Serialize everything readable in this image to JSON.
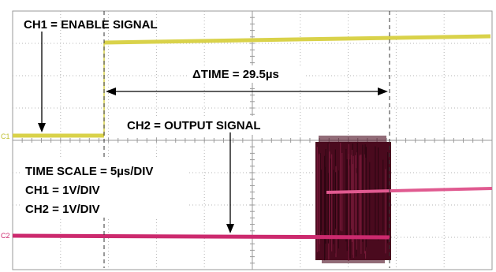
{
  "chart_data": {
    "type": "line",
    "title": "",
    "xlabel": "",
    "ylabel": "",
    "grid": true,
    "annotations": {
      "ch1_label": "CH1 = ENABLE SIGNAL",
      "ch2_label": "CH2 = OUTPUT SIGNAL",
      "delta_time_label": "ΔTIME = 29.5µs",
      "time_scale_label": "TIME SCALE = 5µs/DIV",
      "ch1_scale_label": "CH1 = 1V/DIV",
      "ch2_scale_label": "CH2 = 1V/DIV"
    },
    "time_per_div_us": 5,
    "delta_time_us": 29.5,
    "channel_markers": [
      "C1",
      "C2"
    ],
    "series": [
      {
        "name": "CH1",
        "color": "#d9d24a",
        "low_level": "low",
        "high_level": "high",
        "transition": "rising edge"
      },
      {
        "name": "CH2",
        "color": "#cc2a6e",
        "low_level": "low",
        "high_level": "high",
        "transition": "rising after burst"
      }
    ]
  }
}
